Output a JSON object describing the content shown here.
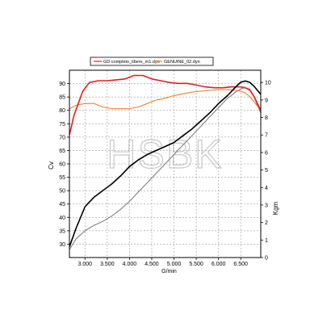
{
  "chart_data": {
    "type": "line",
    "watermark": "HSBK",
    "legend": [
      {
        "name": "GD completo_libero_m1.dyn",
        "color": "#e02020"
      },
      {
        "name": "GENUINE_02.dyn",
        "color": "#f08030"
      }
    ],
    "xlabel": "G/min",
    "xlim": [
      2650,
      6950
    ],
    "x_ticks": [
      3000,
      3500,
      4000,
      4500,
      5000,
      5500,
      6000,
      6500
    ],
    "x_tick_labels": [
      "3.000",
      "3.500",
      "4.000",
      "4.500",
      "5.000",
      "5.500",
      "6.000",
      "6.500"
    ],
    "y_left": {
      "label": "Cv",
      "label_color": "#2030c0",
      "lim": [
        25,
        95
      ],
      "ticks": [
        30,
        35,
        40,
        45,
        50,
        55,
        60,
        65,
        70,
        75,
        80,
        85,
        90
      ]
    },
    "y_right": {
      "label": "Kgm",
      "label_color": "#e02020",
      "lim": [
        0,
        10.7
      ],
      "ticks": [
        0,
        1,
        2,
        3,
        4,
        5,
        6,
        7,
        8,
        9,
        10
      ]
    },
    "grid": true,
    "series": [
      {
        "legend_index": 0,
        "quantity": "power",
        "axis": "left",
        "color": "#000000",
        "x": [
          2650,
          2800,
          2900,
          3000,
          3200,
          3400,
          3600,
          3800,
          4000,
          4200,
          4400,
          4600,
          4800,
          5000,
          5200,
          5400,
          5600,
          5800,
          6000,
          6200,
          6400,
          6500,
          6600,
          6700,
          6800,
          6950
        ],
        "y": [
          29,
          36,
          40,
          44,
          47.5,
          50,
          52.5,
          55.5,
          59,
          61.5,
          63.5,
          65,
          66.5,
          68,
          70.5,
          73,
          76,
          79,
          82.5,
          85.5,
          89,
          90.5,
          91,
          90.5,
          89,
          86
        ]
      },
      {
        "legend_index": 1,
        "quantity": "power",
        "axis": "left",
        "color": "#808080",
        "x": [
          2650,
          2800,
          3000,
          3200,
          3400,
          3600,
          3800,
          4000,
          4200,
          4400,
          4600,
          4800,
          5000,
          5200,
          5400,
          5600,
          5800,
          6000,
          6200,
          6400,
          6500,
          6600,
          6700,
          6800,
          6950
        ],
        "y": [
          28,
          32,
          35,
          37,
          38.5,
          40.5,
          43,
          46,
          49.5,
          53,
          56.5,
          60,
          63.5,
          67,
          70.5,
          74,
          77.5,
          81,
          84.5,
          87,
          88,
          88.5,
          87.5,
          85,
          79
        ]
      },
      {
        "legend_index": 0,
        "quantity": "torque",
        "axis": "right",
        "color": "#e02020",
        "x": [
          2650,
          2750,
          2850,
          2950,
          3100,
          3300,
          3500,
          3700,
          3900,
          4100,
          4300,
          4500,
          4700,
          4900,
          5100,
          5300,
          5500,
          5700,
          5900,
          6100,
          6300,
          6500,
          6600,
          6700,
          6800,
          6950
        ],
        "y": [
          7.0,
          8.1,
          8.8,
          9.5,
          10.0,
          10.1,
          10.1,
          10.15,
          10.2,
          10.4,
          10.4,
          10.2,
          10.1,
          10.0,
          9.95,
          9.95,
          9.85,
          9.75,
          9.7,
          9.7,
          9.75,
          9.75,
          9.7,
          9.6,
          9.2,
          8.4
        ]
      },
      {
        "legend_index": 1,
        "quantity": "torque",
        "axis": "right",
        "color": "#f08030",
        "x": [
          2650,
          2800,
          3000,
          3200,
          3400,
          3600,
          3800,
          4000,
          4200,
          4400,
          4600,
          4800,
          5000,
          5200,
          5400,
          5600,
          5800,
          6000,
          6200,
          6400,
          6500,
          6600,
          6700,
          6800,
          6950
        ],
        "y": [
          8.5,
          8.7,
          8.8,
          8.8,
          8.6,
          8.5,
          8.5,
          8.5,
          8.6,
          8.8,
          9.0,
          9.1,
          9.25,
          9.35,
          9.45,
          9.5,
          9.55,
          9.6,
          9.6,
          9.55,
          9.5,
          9.4,
          9.2,
          8.9,
          8.4
        ]
      }
    ]
  }
}
